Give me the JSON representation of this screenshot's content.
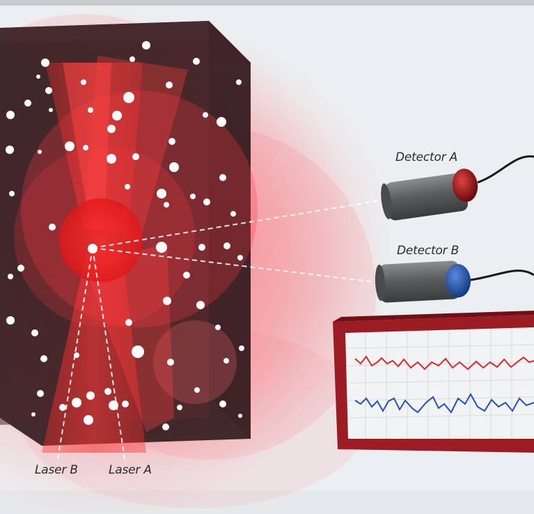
{
  "labels": {
    "detector_a": "Detector A",
    "detector_b": "Detector B",
    "laser_b": "Laser B",
    "laser_a": "Laser A"
  },
  "colors": {
    "background": "#eceff1",
    "top_bar": "#c8cbcd",
    "laser_red": "#ff2020",
    "glow_red": "#ff3b45",
    "cube_dark": "#3a1a1c",
    "monitor_frame": "#9b1c22",
    "detector_a_cap": "#8f1010",
    "detector_b_cap": "#1f4fa0",
    "signal_a": "#e0262b",
    "signal_b": "#2350b8"
  },
  "icons": {
    "detector_a": "detector-icon",
    "detector_b": "detector-icon",
    "monitor": "signal-monitor-icon"
  }
}
